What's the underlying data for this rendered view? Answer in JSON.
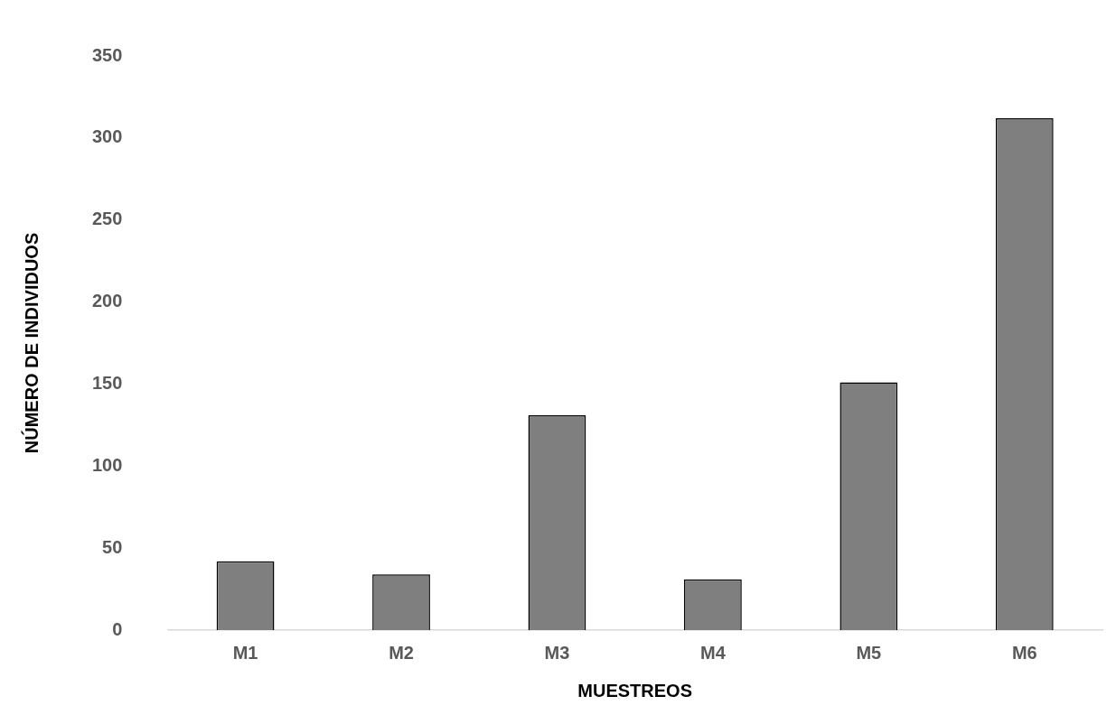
{
  "chart_data": {
    "type": "bar",
    "xlabel": "MUESTREOS",
    "ylabel": "NÚMERO DE INDIVIDUOS",
    "categories": [
      "M1",
      "M2",
      "M3",
      "M4",
      "M5",
      "M6"
    ],
    "values": [
      42,
      34,
      131,
      31,
      151,
      312
    ],
    "color": "#7f7f7f",
    "ylim": [
      0,
      350
    ],
    "yticks": [
      0,
      50,
      100,
      150,
      200,
      250,
      300,
      350
    ],
    "grid": false,
    "legend": false
  }
}
